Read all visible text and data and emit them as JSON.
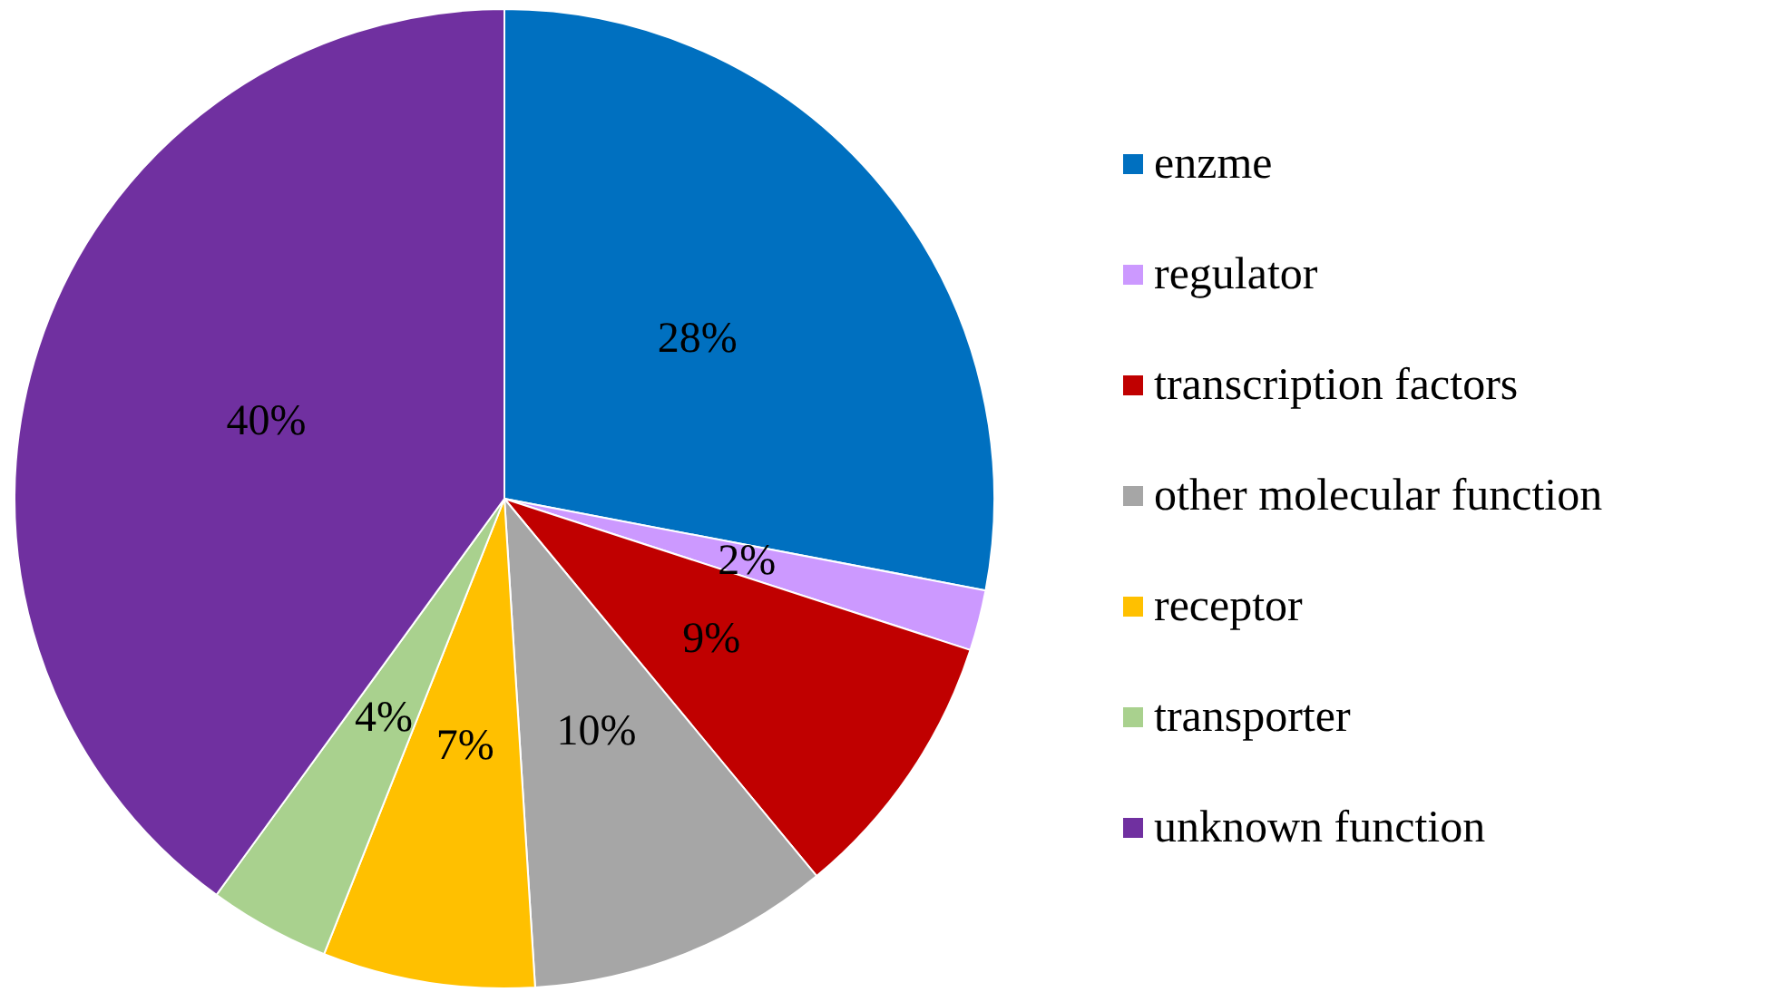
{
  "chart_data": {
    "type": "pie",
    "categories": [
      "enzme",
      "regulator",
      "transcription factors",
      "other molecular function",
      "receptor",
      "transporter",
      "unknown function"
    ],
    "values": [
      28,
      2,
      9,
      10,
      7,
      4,
      40
    ],
    "value_labels": [
      "28%",
      "2%",
      "9%",
      "10%",
      "7%",
      "4%",
      "40%"
    ],
    "colors": [
      "#0070c0",
      "#cc99ff",
      "#c00000",
      "#a6a6a6",
      "#ffc000",
      "#a9d18e",
      "#7030a0"
    ],
    "legend": "right"
  }
}
